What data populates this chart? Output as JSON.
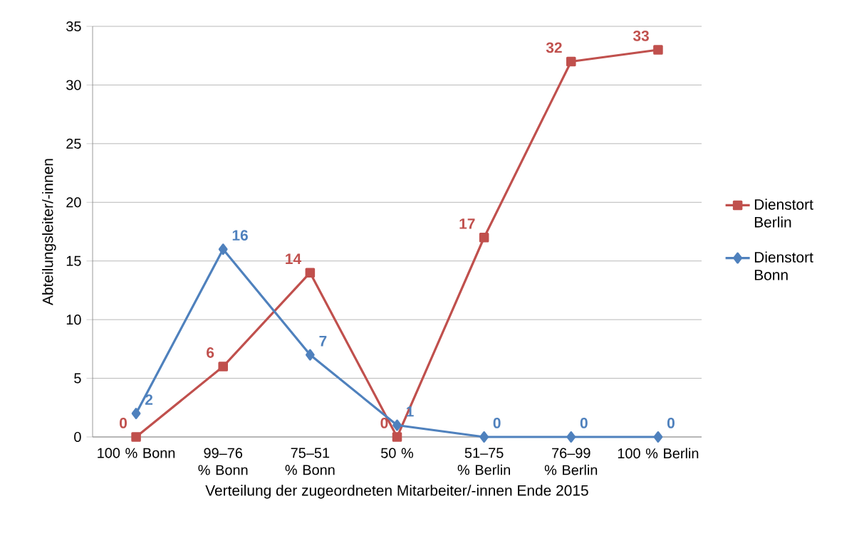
{
  "chart_data": {
    "type": "line",
    "xlabel": "Verteilung der zugeordneten Mitarbeiter/-innen Ende 2015",
    "ylabel": "Abteilungsleiter/-innen",
    "categories": [
      "100 % Bonn",
      "99–76 % Bonn",
      "75–51 % Bonn",
      "50 %",
      "51–75 % Berlin",
      "76–99 % Berlin",
      "100 % Berlin"
    ],
    "series": [
      {
        "name": "Dienstort Berlin",
        "color": "#c0504d",
        "marker": "square",
        "values": [
          0,
          6,
          14,
          0,
          17,
          32,
          33
        ]
      },
      {
        "name": "Dienstort Bonn",
        "color": "#4f81bd",
        "marker": "diamond",
        "values": [
          2,
          16,
          7,
          1,
          0,
          0,
          0
        ]
      }
    ],
    "ylim": [
      0,
      35
    ],
    "yticks": [
      0,
      5,
      10,
      15,
      20,
      25,
      30,
      35
    ],
    "grid": "y",
    "legend": "right",
    "data_labels": true
  }
}
